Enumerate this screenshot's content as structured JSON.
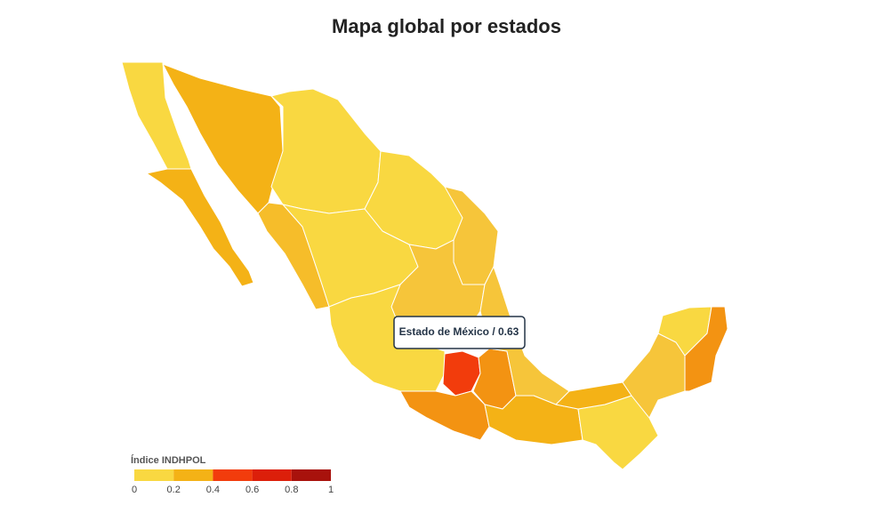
{
  "header": {
    "title": "Mapa global por estados"
  },
  "tooltip": {
    "text": "Estado de México / 0.63"
  },
  "legend": {
    "title": "Índice INDHPOL",
    "ticks": [
      0,
      0.2,
      0.4,
      0.6,
      0.8,
      1
    ],
    "colors": [
      "#f9d841",
      "#f4b216",
      "#f23c0c",
      "#dc1f0a",
      "#a8120c"
    ]
  }
}
